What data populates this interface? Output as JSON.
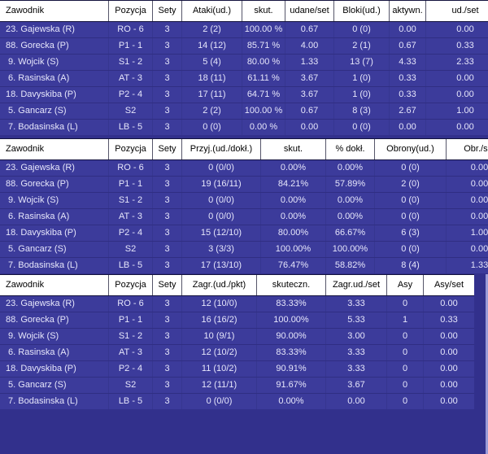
{
  "colors": {
    "background": "#32308C",
    "row_bg": "#3C3B9B",
    "row_text": "#E6E6FB",
    "header_bg": "#FFFFFF",
    "header_text": "#000000",
    "border_dark": "#13123E",
    "edge_strip": "#9B9BD8"
  },
  "tables": [
    {
      "name": "attack-block-stats-table",
      "columns": [
        "Zawodnik",
        "Pozycja",
        "Sety",
        "Ataki(ud.)",
        "skut.",
        "udane/set",
        "Bloki(ud.)",
        "aktywn.",
        "ud./set"
      ],
      "rows": [
        [
          "23. Gajewska (R)",
          "RO - 6",
          "3",
          "2 (2)",
          "100.00 %",
          "0.67",
          "0 (0)",
          "0.00",
          "0.00"
        ],
        [
          "88. Gorecka (P)",
          "P1 - 1",
          "3",
          "14 (12)",
          "85.71 %",
          "4.00",
          "2 (1)",
          "0.67",
          "0.33"
        ],
        [
          " 9. Wojcik (S)",
          "S1 - 2",
          "3",
          "5 (4)",
          "80.00 %",
          "1.33",
          "13 (7)",
          "4.33",
          "2.33"
        ],
        [
          " 6. Rasinska (A)",
          "AT - 3",
          "3",
          "18 (11)",
          "61.11 %",
          "3.67",
          "1 (0)",
          "0.33",
          "0.00"
        ],
        [
          "18. Davyskiba (P)",
          "P2 - 4",
          "3",
          "17 (11)",
          "64.71 %",
          "3.67",
          "1 (0)",
          "0.33",
          "0.00"
        ],
        [
          " 5. Gancarz (S)",
          "S2",
          "3",
          "2 (2)",
          "100.00 %",
          "0.67",
          "8 (3)",
          "2.67",
          "1.00"
        ],
        [
          " 7. Bodasinska (L)",
          "LB - 5",
          "3",
          "0 (0)",
          "0.00 %",
          "0.00",
          "0 (0)",
          "0.00",
          "0.00"
        ]
      ]
    },
    {
      "name": "reception-defense-stats-table",
      "columns": [
        "Zawodnik",
        "Pozycja",
        "Sety",
        "Przyj.(ud./dokł.)",
        "skut.",
        "% dokł.",
        "Obrony(ud.)",
        "Obr./set"
      ],
      "rows": [
        [
          "23. Gajewska (R)",
          "RO - 6",
          "3",
          "0 (0/0)",
          "0.00%",
          "0.00%",
          "0 (0)",
          "0.00"
        ],
        [
          "88. Gorecka (P)",
          "P1 - 1",
          "3",
          "19 (16/11)",
          "84.21%",
          "57.89%",
          "2 (0)",
          "0.00"
        ],
        [
          " 9. Wojcik (S)",
          "S1 - 2",
          "3",
          "0 (0/0)",
          "0.00%",
          "0.00%",
          "0 (0)",
          "0.00"
        ],
        [
          " 6. Rasinska (A)",
          "AT - 3",
          "3",
          "0 (0/0)",
          "0.00%",
          "0.00%",
          "0 (0)",
          "0.00"
        ],
        [
          "18. Davyskiba (P)",
          "P2 - 4",
          "3",
          "15 (12/10)",
          "80.00%",
          "66.67%",
          "6 (3)",
          "1.00"
        ],
        [
          " 5. Gancarz (S)",
          "S2",
          "3",
          "3 (3/3)",
          "100.00%",
          "100.00%",
          "0 (0)",
          "0.00"
        ],
        [
          " 7. Bodasinska (L)",
          "LB - 5",
          "3",
          "17 (13/10)",
          "76.47%",
          "58.82%",
          "8 (4)",
          "1.33"
        ]
      ]
    },
    {
      "name": "serve-stats-table",
      "columns": [
        "Zawodnik",
        "Pozycja",
        "Sety",
        "Zagr.(ud./pkt)",
        "skuteczn.",
        "Zagr.ud./set",
        "Asy",
        "Asy/set"
      ],
      "rows": [
        [
          "23. Gajewska (R)",
          "RO - 6",
          "3",
          "12 (10/0)",
          "83.33%",
          "3.33",
          "0",
          "0.00"
        ],
        [
          "88. Gorecka (P)",
          "P1 - 1",
          "3",
          "16 (16/2)",
          "100.00%",
          "5.33",
          "1",
          "0.33"
        ],
        [
          " 9. Wojcik (S)",
          "S1 - 2",
          "3",
          "10 (9/1)",
          "90.00%",
          "3.00",
          "0",
          "0.00"
        ],
        [
          " 6. Rasinska (A)",
          "AT - 3",
          "3",
          "12 (10/2)",
          "83.33%",
          "3.33",
          "0",
          "0.00"
        ],
        [
          "18. Davyskiba (P)",
          "P2 - 4",
          "3",
          "11 (10/2)",
          "90.91%",
          "3.33",
          "0",
          "0.00"
        ],
        [
          " 5. Gancarz (S)",
          "S2",
          "3",
          "12 (11/1)",
          "91.67%",
          "3.67",
          "0",
          "0.00"
        ],
        [
          " 7. Bodasinska (L)",
          "LB - 5",
          "3",
          "0 (0/0)",
          "0.00%",
          "0.00",
          "0",
          "0.00"
        ]
      ]
    }
  ]
}
